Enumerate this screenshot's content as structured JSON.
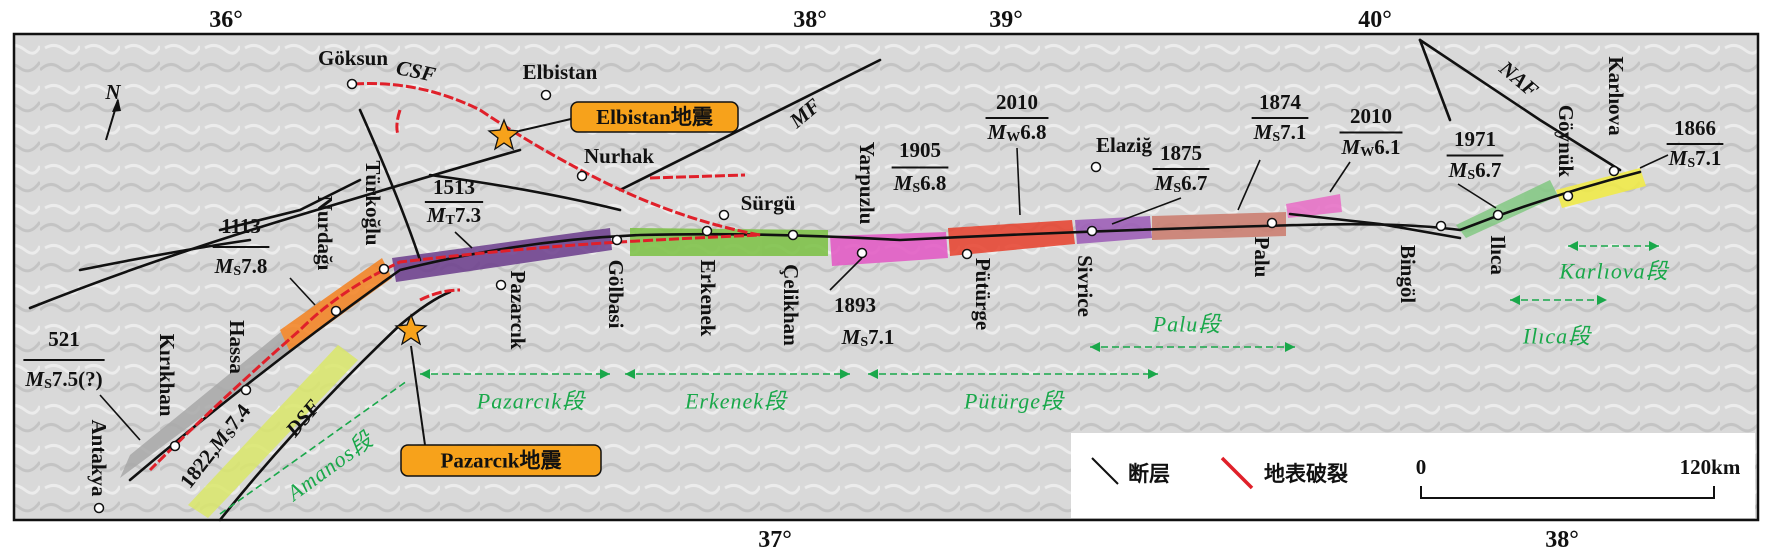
{
  "axis_labels": {
    "top": [
      "36°",
      "38°",
      "39°",
      "40°"
    ],
    "bottom": [
      "37°",
      "38°"
    ]
  },
  "north": "N",
  "places": [
    "Göksun",
    "Elbistan",
    "Nurhak",
    "Sürgü",
    "Elaziğ"
  ],
  "vertical_places": [
    "Kırıkhan",
    "Hassa",
    "Nurdağı",
    "Türkoğlu",
    "Pazarcık",
    "Gölbasi",
    "Erkenek",
    "Çelikhan",
    "Yarpuzlu",
    "Pütürge",
    "Sivrice",
    "Palu",
    "Bingöl",
    "Ilıca",
    "Göynük",
    "Karlıova",
    "Antakya"
  ],
  "faults": [
    "CSF",
    "MF",
    "NAF",
    "DSF"
  ],
  "earthquakes": [
    {
      "year": "521",
      "mag_symbol": "M",
      "mag_sub": "S",
      "mag_value": "7.5(?)"
    },
    {
      "year": "1113",
      "mag_symbol": "M",
      "mag_sub": "S",
      "mag_value": "7.8"
    },
    {
      "year": "1513",
      "mag_symbol": "M",
      "mag_sub": "T",
      "mag_value": "7.3"
    },
    {
      "year": "1905",
      "mag_symbol": "M",
      "mag_sub": "S",
      "mag_value": "6.8"
    },
    {
      "year": "2010",
      "mag_symbol": "M",
      "mag_sub": "W",
      "mag_value": "6.8"
    },
    {
      "year": "1875",
      "mag_symbol": "M",
      "mag_sub": "S",
      "mag_value": "6.7"
    },
    {
      "year": "1874",
      "mag_symbol": "M",
      "mag_sub": "S",
      "mag_value": "7.1"
    },
    {
      "year": "2010",
      "mag_symbol": "M",
      "mag_sub": "W",
      "mag_value": "6.1"
    },
    {
      "year": "1971",
      "mag_symbol": "M",
      "mag_sub": "S",
      "mag_value": "6.7"
    },
    {
      "year": "1866",
      "mag_symbol": "M",
      "mag_sub": "S",
      "mag_value": "7.1"
    }
  ],
  "earthquake_1893": {
    "year": "1893",
    "mag_symbol": "M",
    "mag_sub": "S",
    "mag_value": "7.1"
  },
  "earthquake_1822": {
    "year": "1822,",
    "mag_symbol": "M",
    "mag_sub": "S",
    "mag_value": "7.4"
  },
  "mainshocks": [
    "Elbistan地震",
    "Pazarcık地震"
  ],
  "segments": [
    "Pazarcık段",
    "Erkenek段",
    "Pütürge段",
    "Palu段",
    "Karlıova段",
    "Ilıca段",
    "Amanos段"
  ],
  "legend": {
    "fault": "断层",
    "rupture": "地表破裂"
  },
  "scale_bar": {
    "start": "0",
    "end": "120km"
  }
}
